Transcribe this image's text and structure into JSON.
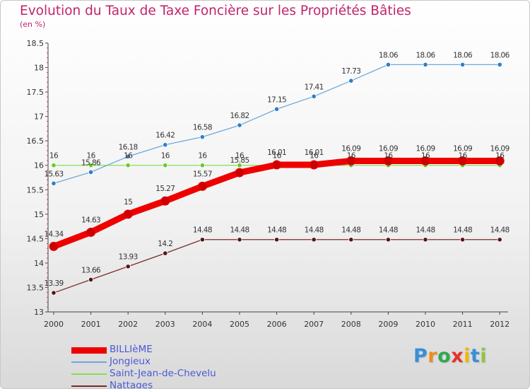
{
  "title": "Evolution du Taux de Taxe Foncière sur les Propriétés Bâties",
  "subtitle": "(en %)",
  "logo": {
    "text": "Proxiti",
    "letters": [
      {
        "ch": "P",
        "color": "#3a8fd8"
      },
      {
        "ch": "r",
        "color": "#f08a1c"
      },
      {
        "ch": "o",
        "color": "#2fa84f"
      },
      {
        "ch": "x",
        "color": "#e6332a"
      },
      {
        "ch": "i",
        "color": "#f2b705"
      },
      {
        "ch": "t",
        "color": "#3a8fd8"
      },
      {
        "ch": "i",
        "color": "#8dc63f"
      }
    ]
  },
  "chart_data": {
    "type": "line",
    "title": "Evolution du Taux de Taxe Foncière sur les Propriétés Bâties",
    "ylabel": "(en %)",
    "ylim": [
      13,
      18.5
    ],
    "yticks": [
      "13",
      "13.5",
      "14",
      "14.5",
      "15",
      "15.5",
      "16",
      "16.5",
      "17",
      "17.5",
      "18",
      "18.5"
    ],
    "x": [
      "2000",
      "2001",
      "2002",
      "2003",
      "2004",
      "2005",
      "2006",
      "2007",
      "2008",
      "2009",
      "2010",
      "2011",
      "2012"
    ],
    "grid": false,
    "legend_position": "bottom-left",
    "series": [
      {
        "name": "BILLIèME",
        "color": "#ee0000",
        "marker_color": "#cc0000",
        "thick": true,
        "values": [
          14.34,
          14.63,
          15,
          15.27,
          15.57,
          15.85,
          16.01,
          16.01,
          16.09,
          16.09,
          16.09,
          16.09,
          16.09
        ],
        "labels": [
          "14.34",
          "14.63",
          "15",
          "15.27",
          "15.57",
          "15.85",
          "16.01",
          "16.01",
          "16.09",
          "16.09",
          "16.09",
          "16.09",
          "16.09"
        ]
      },
      {
        "name": "Jongieux",
        "color": "#6fa8dc",
        "marker_color": "#2f7fc7",
        "thick": false,
        "values": [
          15.63,
          15.86,
          16.18,
          16.42,
          16.58,
          16.82,
          17.15,
          17.41,
          17.73,
          18.06,
          18.06,
          18.06,
          18.06
        ],
        "labels": [
          "15.63",
          "15.86",
          "16.18",
          "16.42",
          "16.58",
          "16.82",
          "17.15",
          "17.41",
          "17.73",
          "18.06",
          "18.06",
          "18.06",
          "18.06"
        ]
      },
      {
        "name": "Saint-Jean-de-Chevelu",
        "color": "#88dd55",
        "marker_color": "#66cc22",
        "thick": false,
        "values": [
          16,
          16,
          16,
          16,
          16,
          16,
          16,
          16,
          16,
          16,
          16,
          16,
          16
        ],
        "labels": [
          "16",
          "16",
          "16",
          "16",
          "16",
          "16",
          "16",
          "16",
          "16",
          "16",
          "16",
          "16",
          "16"
        ]
      },
      {
        "name": "Nattages",
        "color": "#7a2b2b",
        "marker_color": "#5a1414",
        "thick": false,
        "values": [
          13.39,
          13.66,
          13.93,
          14.2,
          14.48,
          14.48,
          14.48,
          14.48,
          14.48,
          14.48,
          14.48,
          14.48,
          14.48
        ],
        "labels": [
          "13.39",
          "13.66",
          "13.93",
          "14.2",
          "14.48",
          "14.48",
          "14.48",
          "14.48",
          "14.48",
          "14.48",
          "14.48",
          "14.48",
          "14.48"
        ]
      }
    ]
  }
}
